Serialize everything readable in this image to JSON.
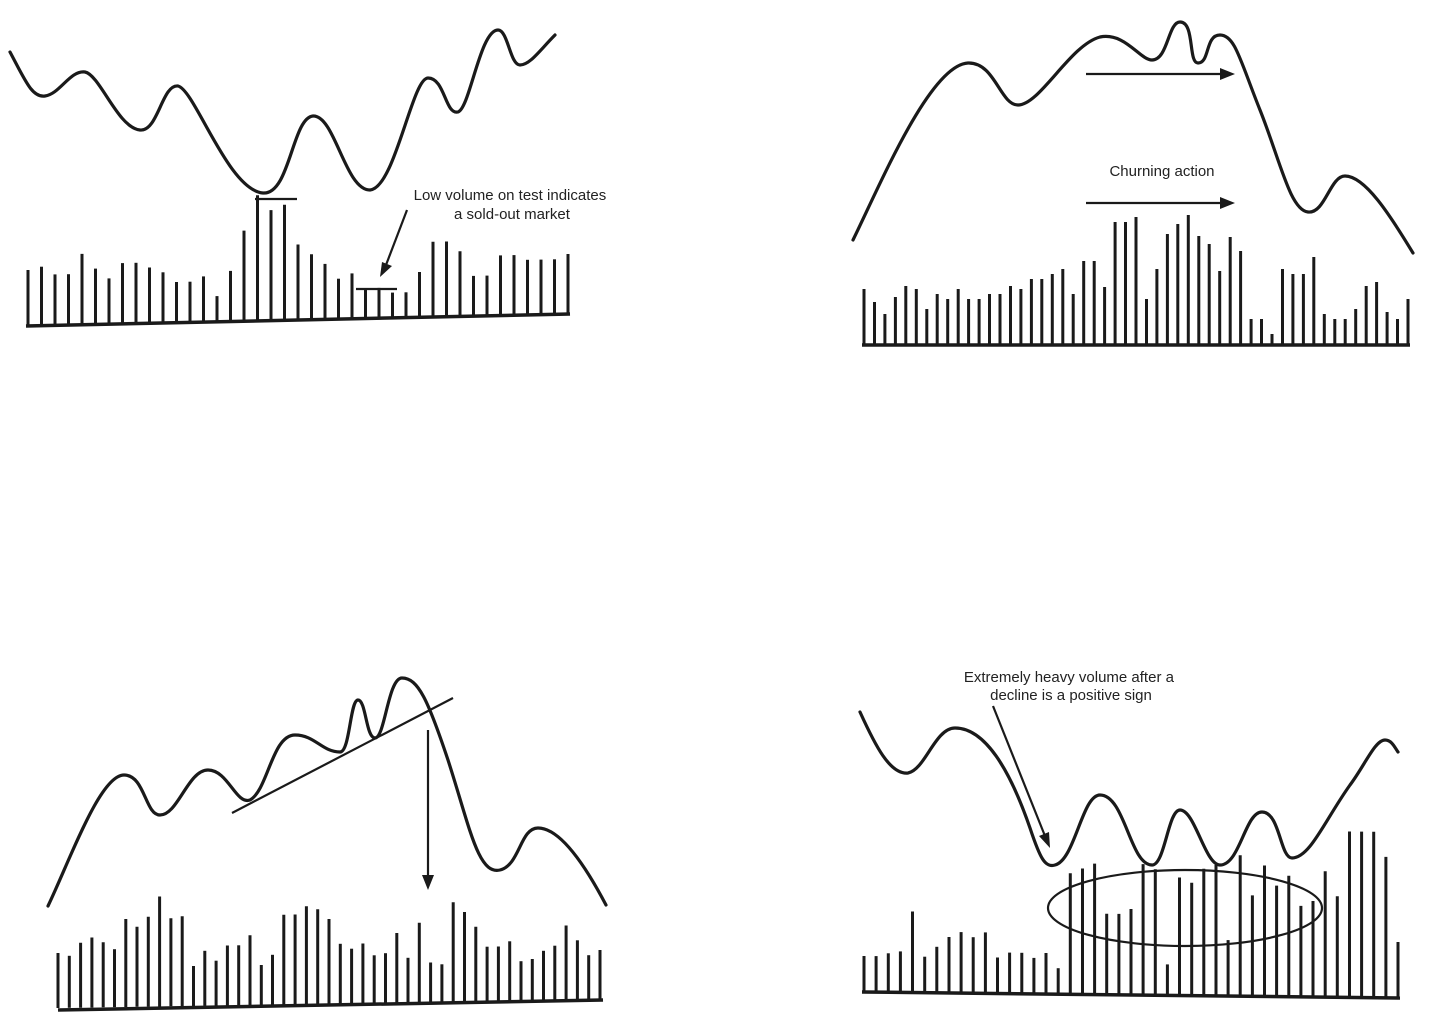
{
  "panels": [
    {
      "id": "sold-out-test",
      "annotation_lines": [
        "Low volume on test indicates",
        "a sold-out market"
      ]
    },
    {
      "id": "churning",
      "annotation_lines": [
        "Churning action"
      ]
    },
    {
      "id": "trendline-break",
      "annotation_lines": []
    },
    {
      "id": "heavy-volume-after-decline",
      "annotation_lines": [
        "Extremely heavy volume after a",
        "decline is a positive sign"
      ]
    }
  ],
  "volume": {
    "p1": [
      55,
      58,
      50,
      50,
      70,
      55,
      45,
      60,
      60,
      55,
      50,
      40,
      40,
      45,
      25,
      50,
      90,
      125,
      110,
      115,
      75,
      65,
      55,
      40,
      45,
      30,
      30,
      25,
      25,
      45,
      75,
      75,
      65,
      40,
      40,
      60,
      60,
      55,
      55,
      55,
      60
    ],
    "p2": [
      55,
      42,
      30,
      47,
      58,
      55,
      35,
      50,
      45,
      55,
      45,
      45,
      50,
      50,
      58,
      55,
      65,
      65,
      70,
      75,
      50,
      83,
      83,
      57,
      122,
      122,
      127,
      45,
      75,
      110,
      120,
      129,
      108,
      100,
      73,
      107,
      93,
      25,
      25,
      10,
      75,
      70,
      70,
      87,
      30,
      25,
      25,
      35,
      58,
      62,
      32,
      25,
      45
    ],
    "p3": [
      55,
      52,
      65,
      70,
      65,
      58,
      88,
      80,
      90,
      110,
      88,
      90,
      40,
      55,
      45,
      60,
      60,
      70,
      40,
      50,
      90,
      90,
      98,
      95,
      85,
      60,
      55,
      60,
      48,
      50,
      70,
      45,
      80,
      40,
      38,
      100,
      90,
      75,
      55,
      55,
      60,
      40,
      42,
      50,
      55,
      75,
      60,
      45,
      50
    ],
    "p4": [
      35,
      35,
      38,
      40,
      80,
      35,
      45,
      55,
      60,
      55,
      60,
      35,
      40,
      40,
      35,
      40,
      25,
      120,
      125,
      130,
      80,
      80,
      85,
      130,
      125,
      30,
      117,
      112,
      126,
      130,
      55,
      140,
      100,
      130,
      110,
      120,
      90,
      95,
      125,
      100,
      165,
      165,
      165,
      140,
      55
    ]
  }
}
